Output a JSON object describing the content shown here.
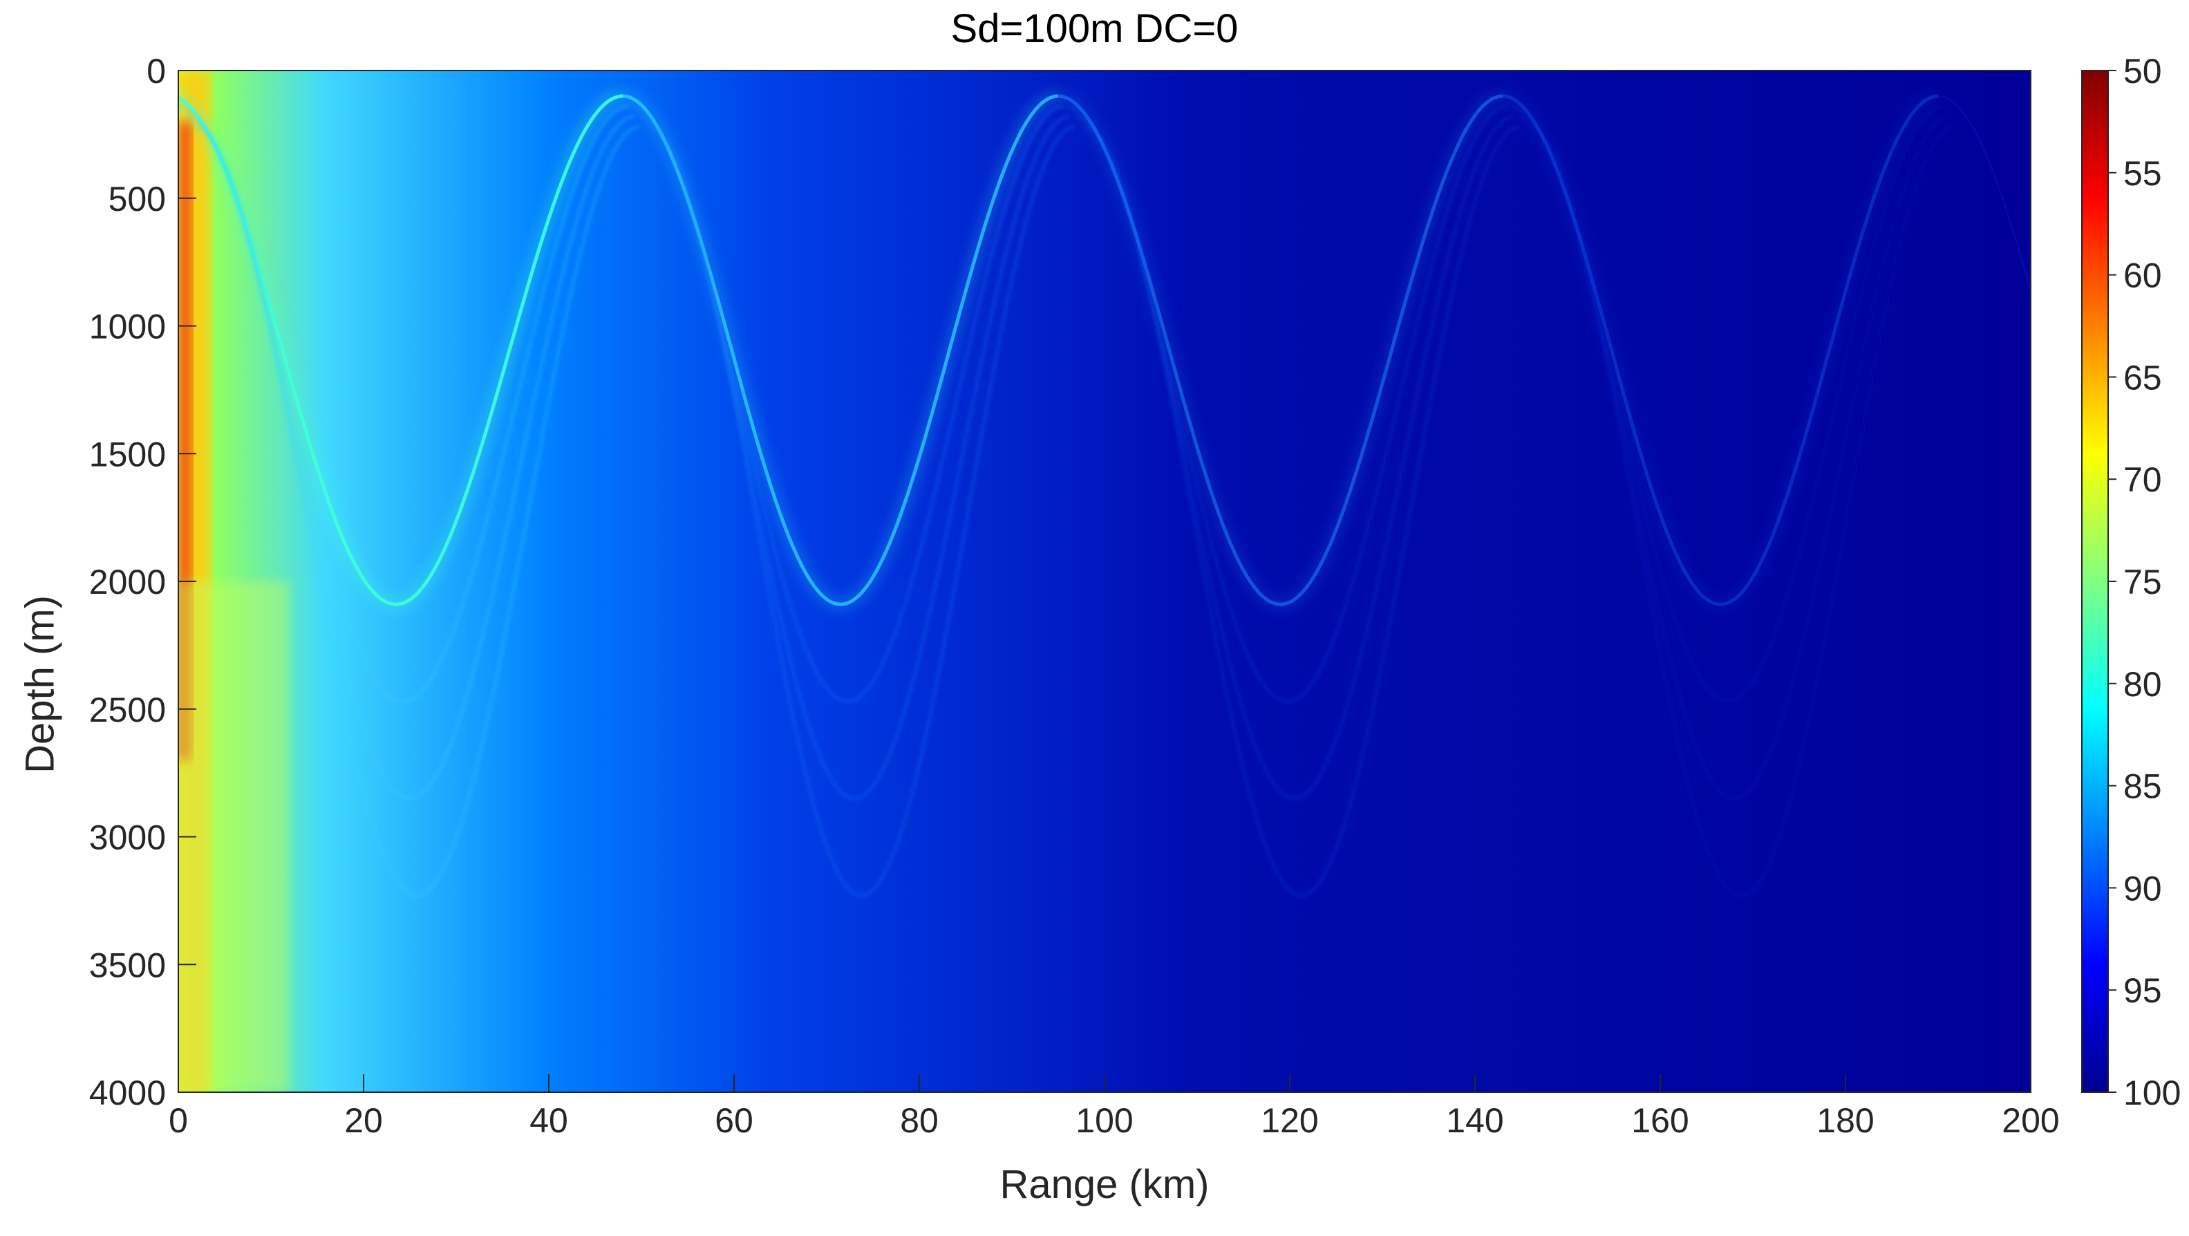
{
  "chart_data": {
    "type": "heatmap",
    "title": "Sd=100m   DC=0",
    "xlabel": "Range (km)",
    "ylabel": "Depth (m)",
    "xlim": [
      0,
      200
    ],
    "ylim": [
      4000,
      0
    ],
    "y_reversed": true,
    "x_ticks": [
      "0",
      "20",
      "40",
      "60",
      "80",
      "100",
      "120",
      "140",
      "160",
      "180",
      "200"
    ],
    "y_ticks": [
      "0",
      "500",
      "1000",
      "1500",
      "2000",
      "2500",
      "3000",
      "3500",
      "4000"
    ],
    "colorbar": {
      "colormap": "jet",
      "reversed": true,
      "range": [
        50,
        100
      ],
      "ticks": [
        "50",
        "55",
        "60",
        "65",
        "70",
        "75",
        "80",
        "85",
        "90",
        "95",
        "100"
      ]
    },
    "features": {
      "convergence_zone_ranges_km": [
        48,
        95,
        143,
        190
      ],
      "upper_turning_depth_m": 100,
      "lower_turning_depth_m": 2090,
      "lower_turning_ranges_km": [
        24,
        71,
        119,
        166
      ]
    }
  }
}
